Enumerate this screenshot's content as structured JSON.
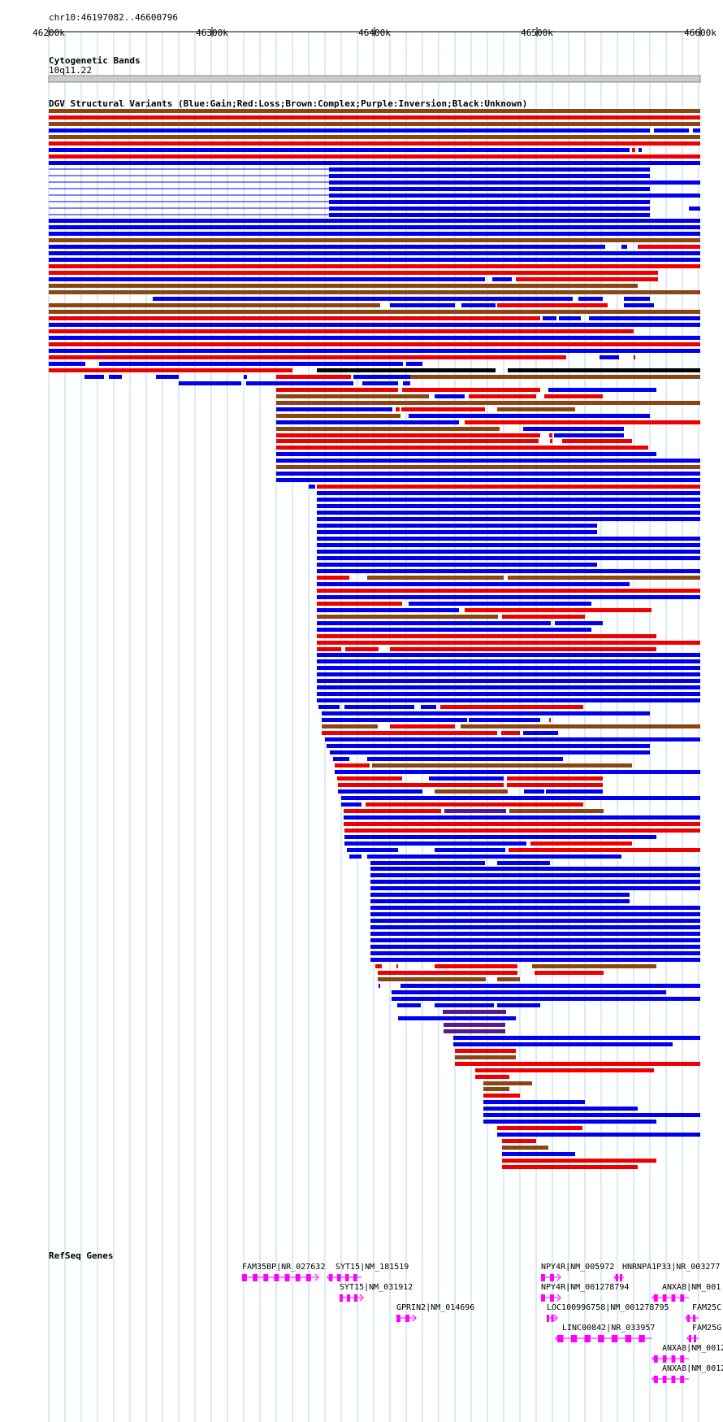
{
  "ruler": {
    "locus": "chr10:46197082..46600796",
    "ticks": [
      "46200k",
      "46300k",
      "46400k",
      "46500k",
      "46600k"
    ]
  },
  "tracks": {
    "cytoband_title": "Cytogenetic Bands",
    "cytoband_name": "10q11.22",
    "dgv_title": "DGV Structural Variants (Blue:Gain;Red:Loss;Brown:Complex;Purple:Inversion;Black:Unknown)",
    "refseq_title": "RefSeq Genes"
  },
  "colors": {
    "gain": "#0000ee",
    "loss": "#ee0000",
    "complex": "#8b4513",
    "inversion": "#551a8b",
    "unknown": "#000000",
    "gene": "#ff00ff",
    "grid": "#b0d8f0"
  },
  "genes": [
    "FAM35BP|NR_027632",
    "SYT15|NM_181519",
    "SYT15|NM_031912",
    "GPRIN2|NM_014696",
    "NPY4R|NM_005972",
    "HNRNPA1P33|NR_003277",
    "NPY4R|NM_001278794",
    "ANXA8|NM_001",
    "LOC100996758|NM_001278795",
    "FAM25C",
    "LINC00842|NR_033957",
    "FAM25G",
    "ANXA8|NM_0012",
    "ANXA8|NM_0012"
  ]
}
